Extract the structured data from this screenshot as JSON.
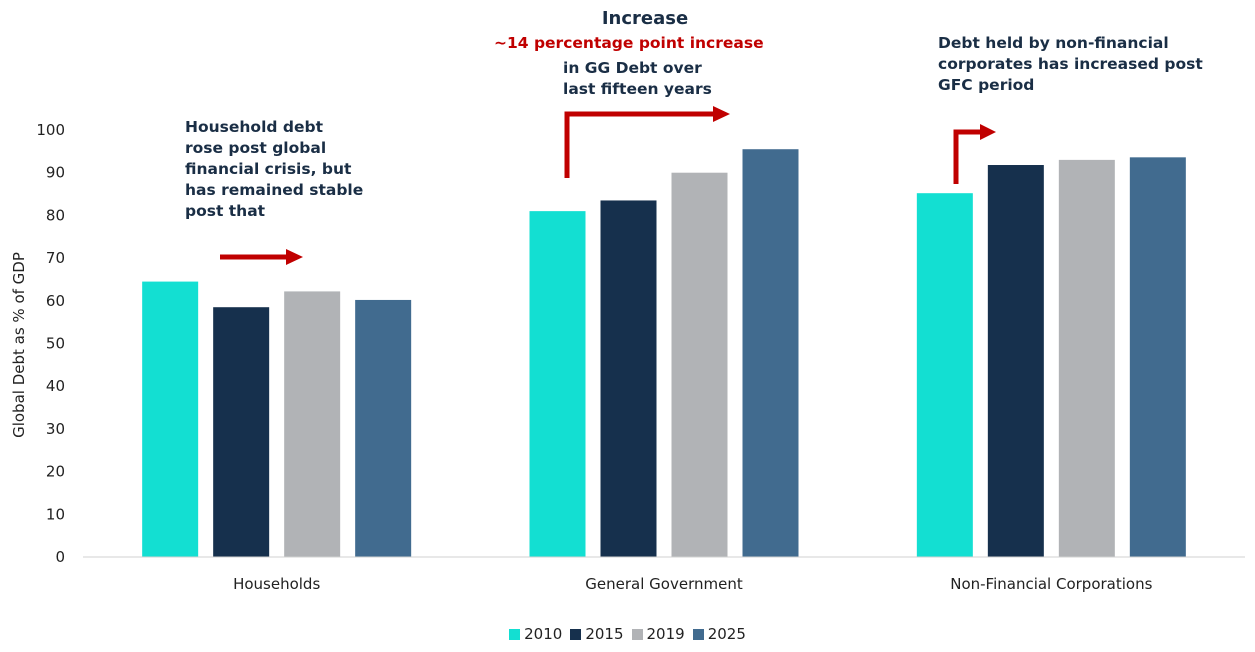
{
  "chart_data": {
    "type": "bar",
    "title": "Increase",
    "ylabel": "Global Debt as % of GDP",
    "xlabel": "",
    "ylim": [
      0,
      100
    ],
    "yticks": [
      0,
      10,
      20,
      30,
      40,
      50,
      60,
      70,
      80,
      90,
      100
    ],
    "categories": [
      "Households",
      "General Government",
      "Non-Financial Corporations"
    ],
    "series": [
      {
        "name": "2010",
        "color": "#13dfd2",
        "values": [
          64.5,
          81,
          85.2
        ]
      },
      {
        "name": "2015",
        "color": "#16304d",
        "values": [
          58.5,
          83.5,
          91.8
        ]
      },
      {
        "name": "2019",
        "color": "#b1b3b6",
        "values": [
          62.2,
          90,
          93
        ]
      },
      {
        "name": "2025",
        "color": "#416b8f",
        "values": [
          60.2,
          95.5,
          93.6
        ]
      }
    ],
    "legend_position": "bottom",
    "grid": false
  },
  "annotations": {
    "households_text": [
      "Household debt",
      "rose post global",
      "financial crisis, but",
      "has remained stable",
      "post that"
    ],
    "gov_red": "~14 percentage point increase",
    "gov_text": [
      "in GG Debt over",
      "last fifteen years"
    ],
    "nfc_text": [
      "Debt held by non-financial",
      "corporates has increased post",
      "GFC period"
    ],
    "arrow_color": "#c00000"
  }
}
